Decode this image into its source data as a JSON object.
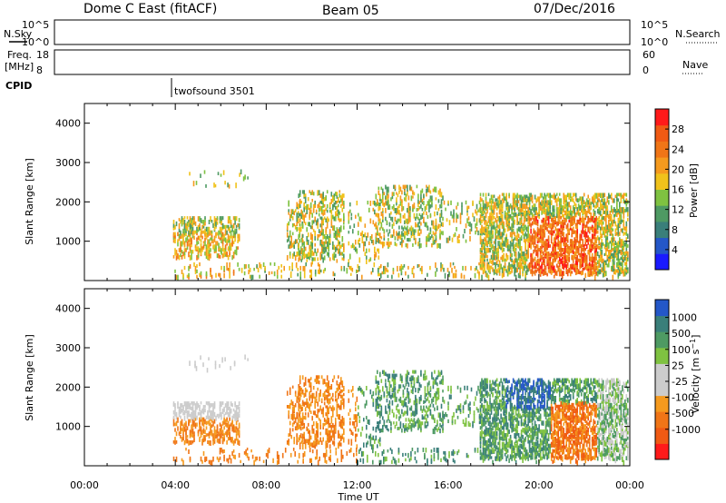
{
  "header": {
    "station": "Dome C East (fitACF)",
    "beam": "Beam 05",
    "date": "07/Dec/2016"
  },
  "top_panels": {
    "nsky_label": "N.Sky",
    "nsky_ticks": [
      "10^5",
      "10^0"
    ],
    "nsearch_label": "N.Search",
    "nsearch_ticks": [
      "10^5",
      "10^0"
    ],
    "freq_label_1": "Freq.",
    "freq_label_2": "[MHz]",
    "freq_ticks": [
      "18",
      "8"
    ],
    "nave_label": "Nave",
    "nave_ticks": [
      "60",
      "0"
    ],
    "cpid_label": "CPID",
    "cpid_value": "twofsound 3501"
  },
  "colors": {
    "power_scale": [
      "#1a1aff",
      "#2457c8",
      "#3a7f7a",
      "#4e9a63",
      "#7fc241",
      "#f0c21b",
      "#f59a1e",
      "#f07517",
      "#f05a14",
      "#ff1a1a"
    ],
    "velocity_scale": [
      "#ff1a1a",
      "#f05a14",
      "#f07517",
      "#f59a1e",
      "#cccccc",
      "#cccccc",
      "#7fc241",
      "#4e9a63",
      "#3a7f7a",
      "#2457c8"
    ]
  },
  "chart_data": [
    {
      "type": "heatmap",
      "title": "",
      "xlabel": "Time UT",
      "ylabel": "Slant Range [km]",
      "x_ticks": [
        "00:00",
        "04:00",
        "08:00",
        "12:00",
        "16:00",
        "20:00",
        "00:00"
      ],
      "y_ticks": [
        "1000",
        "2000",
        "3000",
        "4000"
      ],
      "ylim": [
        0,
        4500
      ],
      "colorbar_label": "Power [dB]",
      "colorbar_ticks": [
        "4",
        "8",
        "12",
        "16",
        "20",
        "24",
        "28"
      ],
      "colorbar_range": [
        0,
        32
      ]
    },
    {
      "type": "heatmap",
      "title": "",
      "xlabel": "Time UT",
      "ylabel": "Slant Range [km]",
      "x_ticks": [
        "00:00",
        "04:00",
        "08:00",
        "12:00",
        "16:00",
        "20:00",
        "00:00"
      ],
      "y_ticks": [
        "1000",
        "2000",
        "3000",
        "4000"
      ],
      "ylim": [
        0,
        4500
      ],
      "colorbar_label": "Velocity [m s^-1]",
      "colorbar_ticks": [
        "1000",
        "500",
        "100",
        "25",
        "-25",
        "-100",
        "-500",
        "-1000"
      ]
    }
  ]
}
